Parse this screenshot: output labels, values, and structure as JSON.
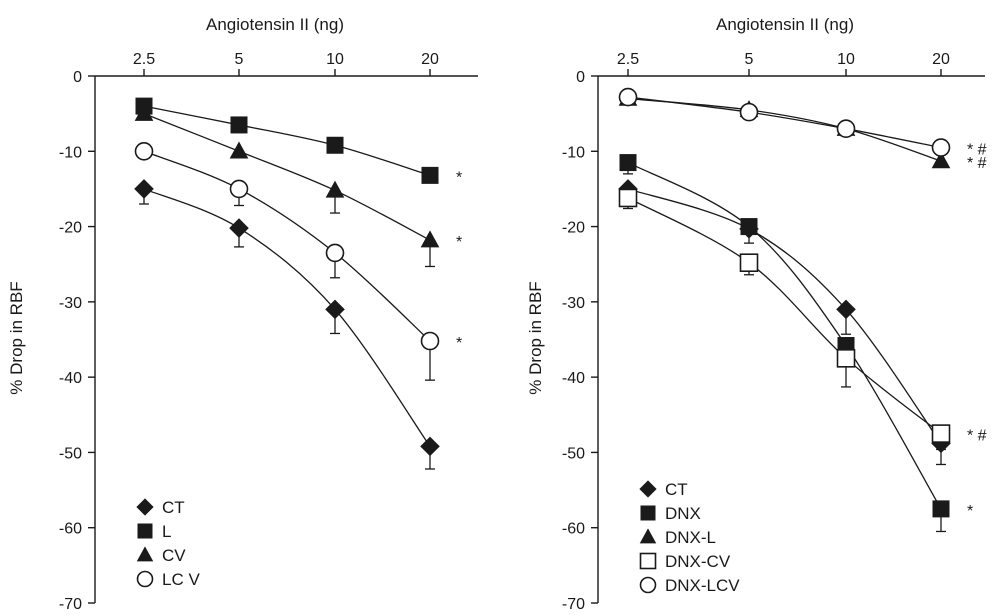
{
  "chart_data": [
    {
      "type": "line",
      "xlabel": "Angiotensin II (ng)",
      "ylabel": "% Drop in RBF",
      "x_tick_labels": [
        "2.5",
        "5",
        "10",
        "20"
      ],
      "y_tick_labels": [
        "0",
        "-10",
        "-20",
        "-30",
        "-40",
        "-50",
        "-60",
        "-70"
      ],
      "ylim": [
        -70,
        0
      ],
      "grid": false,
      "legend_position": "bottom-left",
      "series": [
        {
          "name": "CT",
          "marker": "diamond-filled",
          "values": [
            -15,
            -20.2,
            -31,
            -49.2
          ],
          "errors": [
            2,
            2.5,
            3.2,
            3
          ],
          "significance": [
            null,
            null,
            null,
            null
          ]
        },
        {
          "name": "L",
          "marker": "square-filled",
          "values": [
            -4,
            -6.5,
            -9.2,
            -13.2
          ],
          "errors": [
            0,
            1,
            0,
            0
          ],
          "significance": [
            null,
            null,
            null,
            "*"
          ]
        },
        {
          "name": "CV",
          "marker": "triangle-filled",
          "values": [
            -5,
            -10,
            -15.2,
            -21.8
          ],
          "errors": [
            0,
            0,
            3,
            3.5
          ],
          "significance": [
            null,
            null,
            null,
            "*"
          ]
        },
        {
          "name": "LC V",
          "marker": "circle-open",
          "values": [
            -10,
            -15,
            -23.5,
            -35.2
          ],
          "errors": [
            0,
            2.2,
            3.3,
            5.2
          ],
          "significance": [
            null,
            null,
            null,
            "*"
          ]
        }
      ]
    },
    {
      "type": "line",
      "xlabel": "Angiotensin II (ng)",
      "ylabel": "% Drop in RBF",
      "x_tick_labels": [
        "2.5",
        "5",
        "10",
        "20"
      ],
      "y_tick_labels": [
        "0",
        "-10",
        "-20",
        "-30",
        "-40",
        "-50",
        "-60",
        "-70"
      ],
      "ylim": [
        -70,
        0
      ],
      "grid": false,
      "legend_position": "bottom-left",
      "series": [
        {
          "name": "CT",
          "marker": "diamond-filled",
          "values": [
            -15,
            -20.3,
            -31,
            -48.8
          ],
          "errors": [
            0,
            0,
            3.3,
            2.8
          ],
          "significance": [
            null,
            null,
            null,
            null
          ]
        },
        {
          "name": "DNX",
          "marker": "square-filled",
          "values": [
            -11.5,
            -20,
            -35.8,
            -57.5
          ],
          "errors": [
            1.5,
            2.2,
            2.8,
            3
          ],
          "significance": [
            null,
            null,
            null,
            "*"
          ]
        },
        {
          "name": "DNX-L",
          "marker": "triangle-filled",
          "values": [
            -3,
            -4.5,
            -7,
            -11.3
          ],
          "errors": [
            0,
            0,
            0,
            0
          ],
          "significance": [
            null,
            null,
            null,
            "* #"
          ]
        },
        {
          "name": "DNX-CV",
          "marker": "square-open",
          "values": [
            -16.2,
            -24.8,
            -37.5,
            -47.5
          ],
          "errors": [
            1.4,
            1.6,
            3.8,
            2.1
          ],
          "significance": [
            null,
            null,
            null,
            "* #"
          ]
        },
        {
          "name": "DNX-LCV",
          "marker": "circle-open",
          "values": [
            -2.8,
            -4.8,
            -7,
            -9.5
          ],
          "errors": [
            0,
            0,
            0,
            0
          ],
          "significance": [
            null,
            null,
            null,
            "* #"
          ]
        }
      ]
    }
  ]
}
